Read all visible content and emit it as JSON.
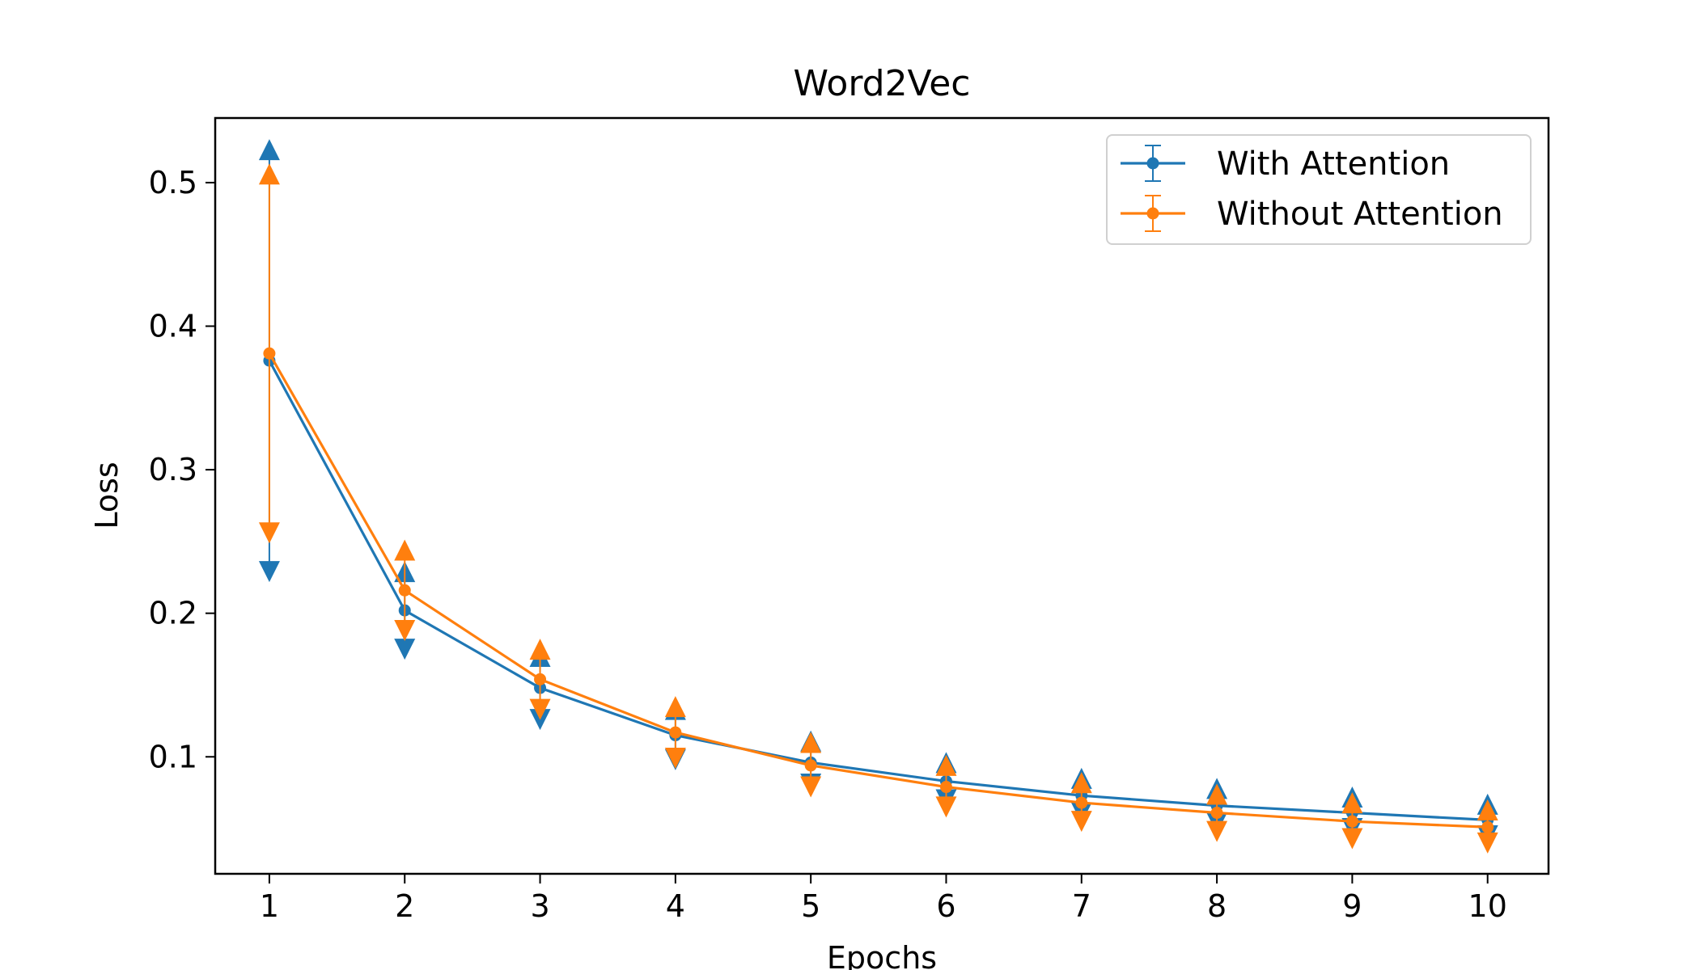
{
  "chart_data": {
    "type": "line",
    "title": "Word2Vec",
    "xlabel": "Epochs",
    "ylabel": "Loss",
    "x": [
      1,
      2,
      3,
      4,
      5,
      6,
      7,
      8,
      9,
      10
    ],
    "xlim": [
      0.6,
      10.45
    ],
    "ylim": [
      0.0185,
      0.545
    ],
    "xticks": [
      1,
      2,
      3,
      4,
      5,
      6,
      7,
      8,
      9,
      10
    ],
    "yticks": [
      0.1,
      0.2,
      0.3,
      0.4,
      0.5
    ],
    "ytick_labels": [
      "0.1",
      "0.2",
      "0.3",
      "0.4",
      "0.5"
    ],
    "grid": false,
    "legend_position": "top-right",
    "series": [
      {
        "name": "With Attention",
        "color": "#1f77b4",
        "values": [
          0.376,
          0.202,
          0.148,
          0.115,
          0.096,
          0.083,
          0.073,
          0.066,
          0.061,
          0.056
        ],
        "upper": [
          0.523,
          0.229,
          0.17,
          0.133,
          0.111,
          0.096,
          0.085,
          0.078,
          0.072,
          0.067
        ],
        "lower": [
          0.229,
          0.175,
          0.126,
          0.098,
          0.081,
          0.07,
          0.061,
          0.054,
          0.05,
          0.045
        ]
      },
      {
        "name": "Without Attention",
        "color": "#ff7f0e",
        "values": [
          0.381,
          0.216,
          0.154,
          0.117,
          0.094,
          0.079,
          0.068,
          0.061,
          0.055,
          0.051
        ],
        "upper": [
          0.506,
          0.244,
          0.175,
          0.135,
          0.11,
          0.094,
          0.082,
          0.074,
          0.068,
          0.063
        ],
        "lower": [
          0.256,
          0.188,
          0.133,
          0.099,
          0.079,
          0.065,
          0.055,
          0.048,
          0.043,
          0.04
        ]
      }
    ]
  }
}
